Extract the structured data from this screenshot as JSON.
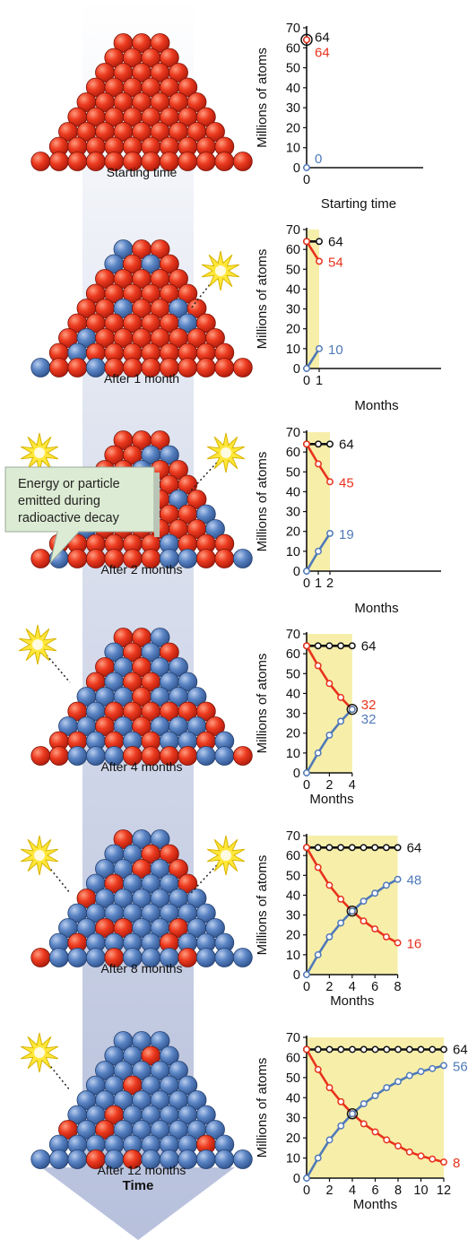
{
  "colors": {
    "parent": "#e8321c",
    "daughter": "#4f79b8",
    "total": "#111111",
    "highlight": "#f7eeaa",
    "arrow": "#c3cbe2",
    "callout_fill": "#dcebd3",
    "starburst": "#ffe73a"
  },
  "arrow_label": "Time",
  "callout": {
    "lines": [
      "Energy or particle",
      "emitted during",
      "radioactive decay"
    ]
  },
  "stages": [
    {
      "caption": "Starting time",
      "blue_count": 0,
      "bursts": 0
    },
    {
      "caption": "After 1 month",
      "blue_count": 10,
      "bursts": 1
    },
    {
      "caption": "After 2 months",
      "blue_count": 19,
      "bursts": 2
    },
    {
      "caption": "After 4 months",
      "blue_count": 32,
      "bursts": 1
    },
    {
      "caption": "After 8 months",
      "blue_count": 48,
      "bursts": 2
    },
    {
      "caption": "After 12 months",
      "blue_count": 56,
      "bursts": 1
    }
  ],
  "chart_data": [
    {
      "type": "line",
      "ylabel": "Millions of atoms",
      "xlabel": "Starting time",
      "ylim": [
        0,
        70
      ],
      "yticks": [
        "0",
        "10",
        "20",
        "30",
        "40",
        "50",
        "60",
        "70"
      ],
      "xticks": [
        "0"
      ],
      "x": [
        0
      ],
      "series": [
        {
          "values": [
            64
          ]
        },
        {
          "values": [
            64
          ]
        },
        {
          "values": [
            0
          ]
        }
      ],
      "end_labels": [
        "64",
        "64",
        "0"
      ]
    },
    {
      "type": "line",
      "ylabel": "Millions of atoms",
      "xlabel": "Months",
      "ylim": [
        0,
        70
      ],
      "yticks": [
        "0",
        "10",
        "20",
        "30",
        "40",
        "50",
        "60",
        "70"
      ],
      "xticks": [
        "0",
        "1"
      ],
      "x": [
        0,
        1
      ],
      "series": [
        {
          "values": [
            64,
            64
          ]
        },
        {
          "values": [
            64,
            54
          ]
        },
        {
          "values": [
            0,
            10
          ]
        }
      ],
      "end_labels": [
        "64",
        "54",
        "10"
      ]
    },
    {
      "type": "line",
      "ylabel": "Millions of atoms",
      "xlabel": "Months",
      "ylim": [
        0,
        70
      ],
      "yticks": [
        "0",
        "10",
        "20",
        "30",
        "40",
        "50",
        "60",
        "70"
      ],
      "xticks": [
        "0",
        "1",
        "2"
      ],
      "x": [
        0,
        1,
        2
      ],
      "series": [
        {
          "values": [
            64,
            64,
            64
          ]
        },
        {
          "values": [
            64,
            54,
            45
          ]
        },
        {
          "values": [
            0,
            10,
            19
          ]
        }
      ],
      "end_labels": [
        "64",
        "45",
        "19"
      ]
    },
    {
      "type": "line",
      "ylabel": "Millions of atoms",
      "xlabel": "Months",
      "ylim": [
        0,
        70
      ],
      "yticks": [
        "0",
        "10",
        "20",
        "30",
        "40",
        "50",
        "60",
        "70"
      ],
      "xticks": [
        "0",
        "2",
        "4"
      ],
      "x": [
        0,
        1,
        2,
        3,
        4
      ],
      "series": [
        {
          "values": [
            64,
            64,
            64,
            64,
            64
          ]
        },
        {
          "values": [
            64,
            54,
            45,
            38,
            32
          ]
        },
        {
          "values": [
            0,
            10,
            19,
            26,
            32
          ]
        }
      ],
      "end_labels": [
        "64",
        "32",
        "32"
      ]
    },
    {
      "type": "line",
      "ylabel": "Millions of atoms",
      "xlabel": "Months",
      "ylim": [
        0,
        70
      ],
      "yticks": [
        "0",
        "10",
        "20",
        "30",
        "40",
        "50",
        "60",
        "70"
      ],
      "xticks": [
        "0",
        "2",
        "4",
        "6",
        "8"
      ],
      "x": [
        0,
        1,
        2,
        3,
        4,
        5,
        6,
        7,
        8
      ],
      "series": [
        {
          "values": [
            64,
            64,
            64,
            64,
            64,
            64,
            64,
            64,
            64
          ]
        },
        {
          "values": [
            64,
            54,
            45,
            38,
            32,
            27,
            23,
            19,
            16
          ]
        },
        {
          "values": [
            0,
            10,
            19,
            26,
            32,
            37,
            41,
            45,
            48
          ]
        }
      ],
      "end_labels": [
        "64",
        "16",
        "48"
      ]
    },
    {
      "type": "line",
      "ylabel": "Millions of atoms",
      "xlabel": "Months",
      "ylim": [
        0,
        70
      ],
      "yticks": [
        "0",
        "10",
        "20",
        "30",
        "40",
        "50",
        "60",
        "70"
      ],
      "xticks": [
        "0",
        "2",
        "4",
        "6",
        "8",
        "10",
        "12"
      ],
      "x": [
        0,
        1,
        2,
        3,
        4,
        5,
        6,
        7,
        8,
        9,
        10,
        11,
        12
      ],
      "series": [
        {
          "values": [
            64,
            64,
            64,
            64,
            64,
            64,
            64,
            64,
            64,
            64,
            64,
            64,
            64
          ]
        },
        {
          "values": [
            64,
            54,
            45,
            38,
            32,
            27,
            23,
            19,
            16,
            13,
            11,
            9.5,
            8
          ]
        },
        {
          "values": [
            0,
            10,
            19,
            26,
            32,
            37,
            41,
            45,
            48,
            51,
            53,
            54.5,
            56
          ]
        }
      ],
      "end_labels": [
        "64",
        "8",
        "56"
      ]
    }
  ]
}
